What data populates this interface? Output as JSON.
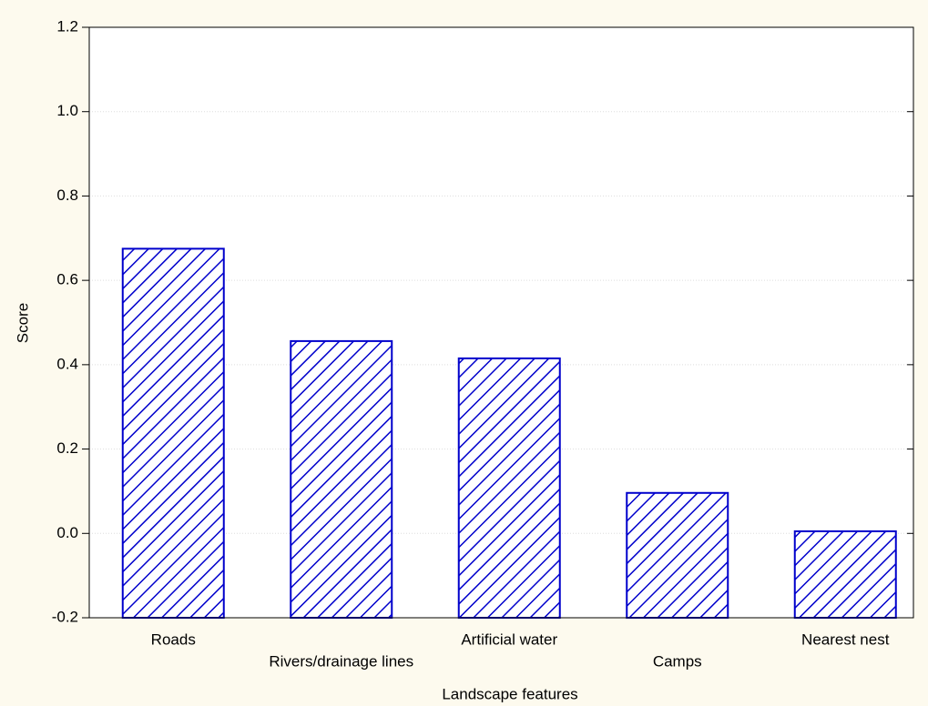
{
  "chart_data": {
    "type": "bar",
    "x_label": "Landscape features",
    "y_label": "Score",
    "categories": [
      "Roads",
      "Rivers/drainage lines",
      "Artificial water",
      "Camps",
      "Nearest nest"
    ],
    "values": [
      0.675,
      0.456,
      0.415,
      0.096,
      0.005
    ],
    "color": "#0000cc",
    "ylim": [
      -0.2,
      1.2
    ],
    "yticks": [
      -0.2,
      {
        "value": 0,
        "label": "0.0"
      },
      0.2,
      0.4,
      0.6,
      0.8,
      {
        "value": 1,
        "label": "1.0"
      },
      1.2
    ],
    "grid": true
  }
}
